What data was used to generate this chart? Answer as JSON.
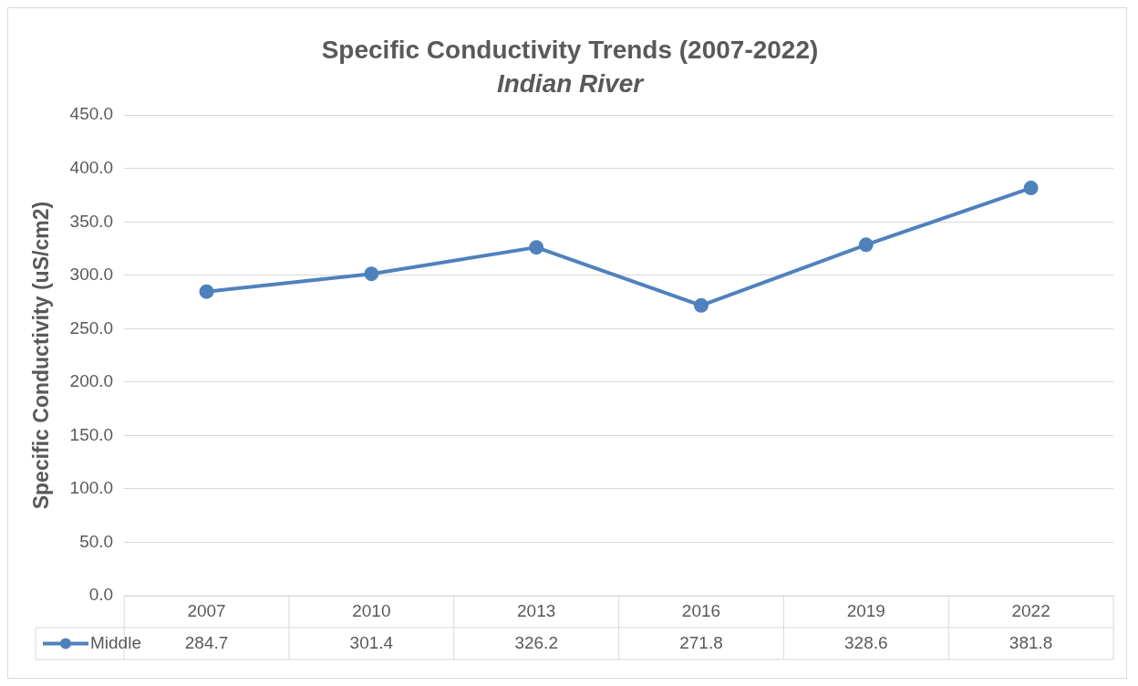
{
  "chart_data": {
    "type": "line",
    "title": "Specific Conductivity Trends (2007-2022)",
    "subtitle": "Indian River",
    "ylabel": "Specific Conductivity (uS/cm2)",
    "categories": [
      "2007",
      "2010",
      "2013",
      "2016",
      "2019",
      "2022"
    ],
    "series": [
      {
        "name": "Middle",
        "color": "#4f81bd",
        "values": [
          284.7,
          301.4,
          326.2,
          271.8,
          328.6,
          381.8
        ]
      }
    ],
    "ylim": [
      0,
      450
    ],
    "yticks": [
      {
        "value": 0,
        "label": "0.0"
      },
      {
        "value": 50,
        "label": "50.0"
      },
      {
        "value": 100,
        "label": "100.0"
      },
      {
        "value": 150,
        "label": "150.0"
      },
      {
        "value": 200,
        "label": "200.0"
      },
      {
        "value": 250,
        "label": "250.0"
      },
      {
        "value": 300,
        "label": "300.0"
      },
      {
        "value": 350,
        "label": "350.0"
      },
      {
        "value": 400,
        "label": "400.0"
      },
      {
        "value": 450,
        "label": "450.0"
      }
    ],
    "grid": "y",
    "marker": "circle",
    "line_style": "solid",
    "data_labels": true
  }
}
